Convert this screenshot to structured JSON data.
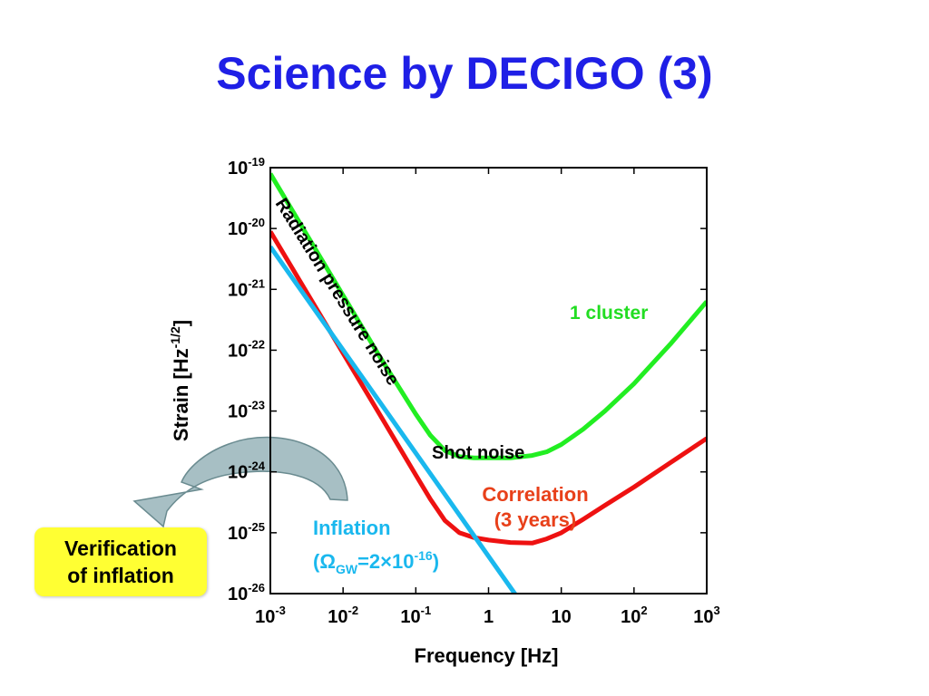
{
  "slide": {
    "title": "Science by DECIGO (3)",
    "callout": "Verification\nof inflation"
  },
  "chart_data": {
    "type": "line",
    "xlabel": "Frequency [Hz]",
    "ylabel": "Strain [Hz-1/2]",
    "x_scale": "log",
    "y_scale": "log",
    "xlim": [
      0.001,
      1000
    ],
    "ylim": [
      1e-26,
      1e-19
    ],
    "grid": false,
    "x_ticks": [
      {
        "v": -3,
        "base": "10",
        "exp": "-3"
      },
      {
        "v": -2,
        "base": "10",
        "exp": "-2"
      },
      {
        "v": -1,
        "base": "10",
        "exp": "-1"
      },
      {
        "v": 0,
        "base": "1",
        "exp": ""
      },
      {
        "v": 1,
        "base": "10",
        "exp": ""
      },
      {
        "v": 2,
        "base": "10",
        "exp": "2"
      },
      {
        "v": 3,
        "base": "10",
        "exp": "3"
      }
    ],
    "y_ticks": [
      {
        "v": -19,
        "base": "10",
        "exp": "-19"
      },
      {
        "v": -20,
        "base": "10",
        "exp": "-20"
      },
      {
        "v": -21,
        "base": "10",
        "exp": "-21"
      },
      {
        "v": -22,
        "base": "10",
        "exp": "-22"
      },
      {
        "v": -23,
        "base": "10",
        "exp": "-23"
      },
      {
        "v": -24,
        "base": "10",
        "exp": "-24"
      },
      {
        "v": -25,
        "base": "10",
        "exp": "-25"
      },
      {
        "v": -26,
        "base": "10",
        "exp": "-26"
      }
    ],
    "series": [
      {
        "name": "1 cluster",
        "color": "#22ee22",
        "log_x": [
          -3,
          -2.5,
          -2,
          -1.5,
          -1,
          -0.8,
          -0.6,
          -0.4,
          -0.2,
          0,
          0.3,
          0.6,
          0.8,
          1,
          1.3,
          1.6,
          2,
          2.5,
          3
        ],
        "log_y": [
          -19.1,
          -20.1,
          -21.1,
          -22.1,
          -23.05,
          -23.4,
          -23.65,
          -23.75,
          -23.77,
          -23.77,
          -23.77,
          -23.73,
          -23.67,
          -23.55,
          -23.3,
          -23.0,
          -22.55,
          -21.9,
          -21.2
        ]
      },
      {
        "name": "Correlation (3 years)",
        "color": "#ee1111",
        "log_x": [
          -3,
          -2.5,
          -2,
          -1.5,
          -1,
          -0.8,
          -0.6,
          -0.4,
          -0.2,
          0,
          0.3,
          0.6,
          0.8,
          1,
          1.3,
          1.6,
          2,
          2.5,
          3
        ],
        "log_y": [
          -20.05,
          -21.05,
          -22.05,
          -23.05,
          -24.05,
          -24.45,
          -24.8,
          -25.0,
          -25.08,
          -25.12,
          -25.16,
          -25.17,
          -25.1,
          -25.0,
          -24.78,
          -24.55,
          -24.25,
          -23.85,
          -23.45
        ]
      },
      {
        "name": "Inflation (ΩGW=2×10-16)",
        "color": "#1ab8ee",
        "log_x": [
          -3,
          0.42
        ],
        "log_y": [
          -20.3,
          -26.1
        ]
      }
    ],
    "annotations": {
      "radiation": "Radiation pressure noise",
      "shot": "Shot noise",
      "cluster": "1 cluster",
      "correlation_1": "Correlation",
      "correlation_2": "(3 years)",
      "inflation_1": "Inflation",
      "inflation_omega": "Ω",
      "inflation_gw": "GW",
      "inflation_mid": "=2×10",
      "inflation_exp": "-16"
    }
  }
}
